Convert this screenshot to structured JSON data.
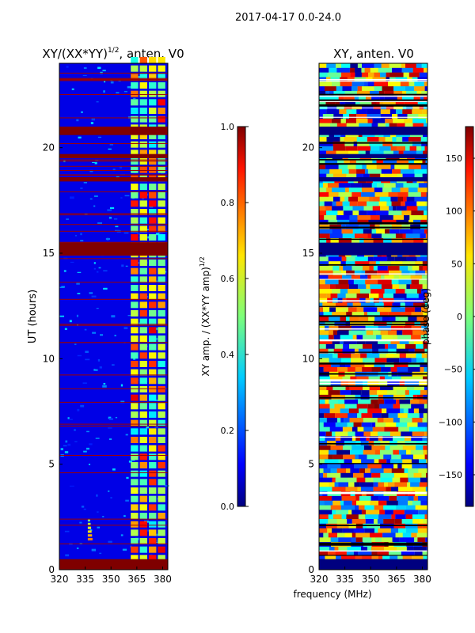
{
  "chart_data": [
    {
      "id": "amp",
      "type": "heatmap",
      "title": "XY/(XX*YY)",
      "title_exponent": "1/2",
      "title_suffix": ", anten. V0",
      "xlabel": "frequency (MHz)",
      "ylabel": "UT (hours)",
      "xlim": [
        320,
        383
      ],
      "ylim": [
        0,
        24
      ],
      "xticks": [
        320,
        335,
        350,
        365,
        380
      ],
      "yticks": [
        0,
        5,
        10,
        15,
        20
      ],
      "colorbar": {
        "label": "XY amp. / (XX*YY amp)",
        "label_exponent": "1/2",
        "range": [
          0.0,
          1.0
        ],
        "ticks": [
          "0.0",
          "0.2",
          "0.4",
          "0.6",
          "0.8",
          "1.0"
        ],
        "colormap": "jet"
      },
      "saturated_bands_hours": [
        [
          0.0,
          0.5
        ],
        [
          14.9,
          15.5
        ],
        [
          20.6,
          21.0
        ],
        [
          19.5,
          19.7
        ],
        [
          18.4,
          18.6
        ]
      ],
      "bright_channel_band_MHz": [
        361,
        382
      ],
      "background_value": 0.1,
      "channel_cell_value": 0.9
    },
    {
      "id": "phase",
      "type": "heatmap",
      "title": "XY, anten. V0",
      "xlabel": "frequency (MHz)",
      "ylabel": "",
      "xlim": [
        320,
        383
      ],
      "ylim": [
        0,
        24
      ],
      "xticks": [
        320,
        335,
        350,
        365,
        380
      ],
      "yticks": [
        0,
        5,
        10,
        15,
        20
      ],
      "colorbar": {
        "label": "phase (deg)",
        "range": [
          -180,
          180
        ],
        "ticks": [
          "−150",
          "−100",
          "−50",
          "0",
          "50",
          "100",
          "150"
        ],
        "colormap": "jet"
      }
    }
  ],
  "suptitle": "2017-04-17 0.0-24.0",
  "shared_xlabel": "frequency (MHz)"
}
